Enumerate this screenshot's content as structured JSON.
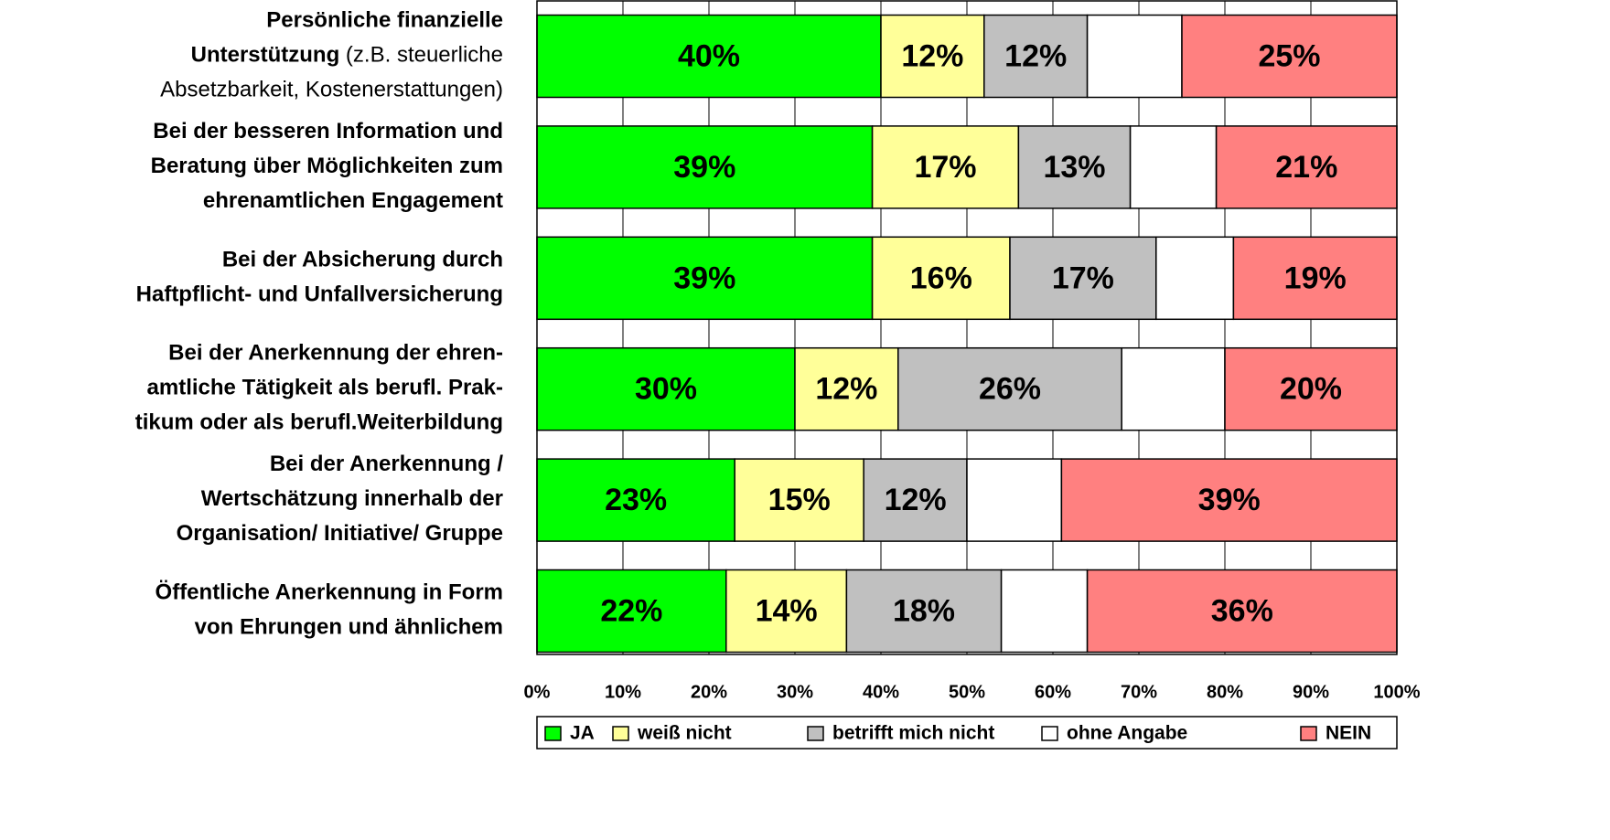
{
  "chart_data": {
    "type": "stacked_barh",
    "categories": [
      [
        [
          {
            "text": "Persönliche finanzielle",
            "bold": true
          }
        ],
        [
          {
            "text": "Unterstützung",
            "bold": true
          },
          {
            "text": " (z.B. steuerliche",
            "bold": false
          }
        ],
        [
          {
            "text": "Absetzbarkeit, Kostenerstattungen)",
            "bold": false
          }
        ]
      ],
      [
        [
          {
            "text": "Bei der besseren Information und",
            "bold": true
          }
        ],
        [
          {
            "text": "Beratung über Möglichkeiten zum",
            "bold": true
          }
        ],
        [
          {
            "text": "ehrenamtlichen Engagement",
            "bold": true
          }
        ]
      ],
      [
        [
          {
            "text": "Bei der Absicherung durch",
            "bold": true
          }
        ],
        [
          {
            "text": "Haftpflicht- und Unfallversicherung",
            "bold": true
          }
        ]
      ],
      [
        [
          {
            "text": "Bei der Anerkennung der ehren-",
            "bold": true
          }
        ],
        [
          {
            "text": "amtliche Tätigkeit  als berufl. Prak-",
            "bold": true
          }
        ],
        [
          {
            "text": "tikum oder als berufl.Weiterbildung",
            "bold": true
          }
        ]
      ],
      [
        [
          {
            "text": "Bei der Anerkennung /",
            "bold": true
          }
        ],
        [
          {
            "text": "Wertschätzung innerhalb der",
            "bold": true
          }
        ],
        [
          {
            "text": "Organisation/ Initiative/ Gruppe",
            "bold": true
          }
        ]
      ],
      [
        [
          {
            "text": "Öffentliche Anerkennung in Form",
            "bold": true
          }
        ],
        [
          {
            "text": "von Ehrungen und ähnlichem",
            "bold": true
          }
        ]
      ]
    ],
    "series": [
      {
        "name": "JA",
        "color": "#00ff00",
        "values": [
          40,
          39,
          39,
          30,
          23,
          22
        ],
        "value_labels": [
          "40%",
          "39%",
          "39%",
          "30%",
          "23%",
          "22%"
        ]
      },
      {
        "name": "weiß nicht",
        "color": "#ffff99",
        "values": [
          12,
          17,
          16,
          12,
          15,
          14
        ],
        "value_labels": [
          "12%",
          "17%",
          "16%",
          "12%",
          "15%",
          "14%"
        ]
      },
      {
        "name": "betrifft mich nicht",
        "color": "#c0c0c0",
        "values": [
          12,
          13,
          17,
          26,
          12,
          18
        ],
        "value_labels": [
          "12%",
          "13%",
          "17%",
          "26%",
          "12%",
          "18%"
        ]
      },
      {
        "name": "ohne Angabe",
        "color": "#ffffff",
        "values": [
          11,
          10,
          9,
          12,
          11,
          10
        ]
      },
      {
        "name": "NEIN",
        "color": "#ff8080",
        "values": [
          25,
          21,
          19,
          20,
          39,
          36
        ],
        "value_labels": [
          "25%",
          "21%",
          "19%",
          "20%",
          "39%",
          "36%"
        ]
      }
    ],
    "xlim": [
      0,
      100
    ],
    "xticks": [
      {
        "value": 0,
        "label": "0%"
      },
      {
        "value": 10,
        "label": "10%"
      },
      {
        "value": 20,
        "label": "20%"
      },
      {
        "value": 30,
        "label": "30%"
      },
      {
        "value": 40,
        "label": "40%"
      },
      {
        "value": 50,
        "label": "50%"
      },
      {
        "value": 60,
        "label": "60%"
      },
      {
        "value": 70,
        "label": "70%"
      },
      {
        "value": 80,
        "label": "80%"
      },
      {
        "value": 90,
        "label": "90%"
      },
      {
        "value": 100,
        "label": "100%"
      }
    ],
    "grid": true,
    "legend": "bottom"
  }
}
